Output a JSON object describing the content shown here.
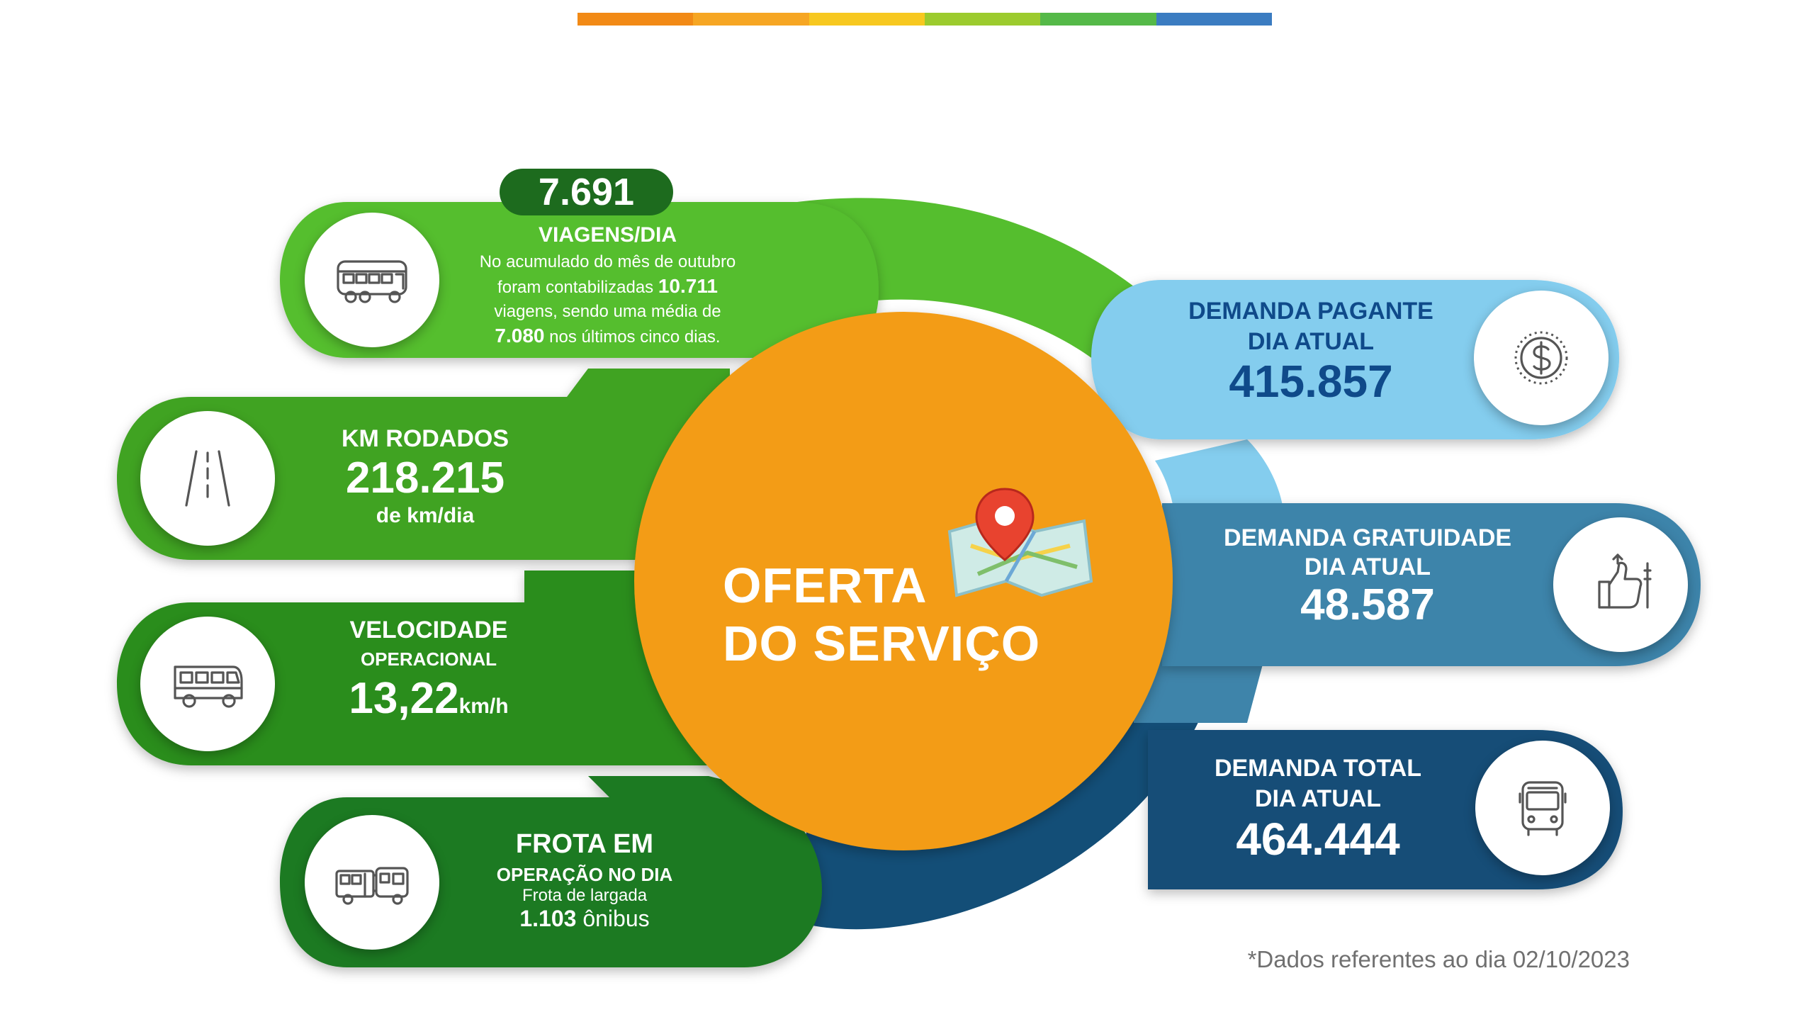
{
  "colors": {
    "orange": "#F39C12",
    "green_light": "#55BE2E",
    "green_mid": "#3FA322",
    "green_dark": "#2C8D1F",
    "green_darker": "#1E7A20",
    "green_badge": "#1D6B1E",
    "blue_light": "#84CDEE",
    "blue_mid": "#3E84AA",
    "blue_dark": "#134E77",
    "navy_text": "#0F4A8A"
  },
  "top_bar_colors": [
    "#F28A16",
    "#F6A623",
    "#F7C820",
    "#9CCB2E",
    "#55B948",
    "#3B7CC1"
  ],
  "center": {
    "line1": "OFERTA",
    "line2": "DO SERVIÇO",
    "icon": "map-pin-icon"
  },
  "viagens": {
    "badge_value": "7.691",
    "title": "VIAGENS/DIA",
    "line1": "No acumulado do mês de outubro",
    "line2_prefix": "foram contabilizadas ",
    "line2_bold": "10.711",
    "line3": "viagens, sendo uma média de",
    "line4_bold": "7.080",
    "line4_suffix": " nos últimos cinco dias.",
    "icon": "bus-side-icon"
  },
  "km": {
    "title": "KM RODADOS",
    "value": "218.215",
    "unit": "de km/dia",
    "icon": "road-icon"
  },
  "velocidade": {
    "title": "VELOCIDADE",
    "subtitle": "OPERACIONAL",
    "value": "13,22",
    "unit": "km/h",
    "icon": "bus-icon"
  },
  "frota": {
    "title": "FROTA EM",
    "subtitle": "OPERAÇÃO NO DIA",
    "line1": "Frota de largada",
    "value_bold": "1.103",
    "value_suffix": " ônibus",
    "icon": "articulated-bus-icon"
  },
  "pagante": {
    "title1": "DEMANDA PAGANTE",
    "title2": "DIA ATUAL",
    "value": "415.857",
    "icon": "dollar-coin-icon"
  },
  "gratuidade": {
    "title1": "DEMANDA GRATUIDADE",
    "title2": "DIA ATUAL",
    "value": "48.587",
    "icon": "thumbs-up-icon"
  },
  "total": {
    "title1": "DEMANDA TOTAL",
    "title2": "DIA ATUAL",
    "value": "464.444",
    "icon": "bus-front-icon"
  },
  "footnote": "*Dados referentes ao dia 02/10/2023"
}
